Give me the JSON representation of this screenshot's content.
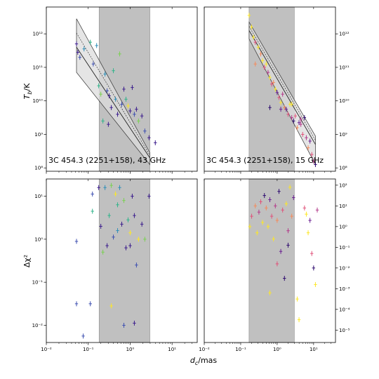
{
  "xlabel_main": "d",
  "xlabel_sub": "c",
  "xlabel_unit": "/mas",
  "ylabel_top_main": "T",
  "ylabel_top_sub": "b",
  "ylabel_top_unit": "/K",
  "ylabel_bottom": "Δχ²",
  "xticks": [
    {
      "label": "10⁻²",
      "value": -2
    },
    {
      "label": "10⁻¹",
      "value": -1
    },
    {
      "label": "10⁰",
      "value": 0
    },
    {
      "label": "10¹",
      "value": 1
    }
  ],
  "yticks_tb": [
    {
      "label": "10⁸",
      "value": 8
    },
    {
      "label": "10⁹",
      "value": 9
    },
    {
      "label": "10¹⁰",
      "value": 10
    },
    {
      "label": "10¹¹",
      "value": 11
    },
    {
      "label": "10¹²",
      "value": 12
    }
  ],
  "yticks_chi_left": [
    {
      "label": "10⁻²",
      "value": -2
    },
    {
      "label": "10⁻¹",
      "value": -1
    },
    {
      "label": "10⁰",
      "value": 0
    },
    {
      "label": "10¹",
      "value": 1
    }
  ],
  "yticks_chi_right": [
    {
      "label": "10⁻⁵",
      "value": -5
    },
    {
      "label": "10⁻⁴",
      "value": -4
    },
    {
      "label": "10⁻³",
      "value": -3
    },
    {
      "label": "10⁻²",
      "value": -2
    },
    {
      "label": "10⁻¹",
      "value": -1
    },
    {
      "label": "10⁰",
      "value": 0
    },
    {
      "label": "10¹",
      "value": 1
    },
    {
      "label": "10²",
      "value": 2
    }
  ],
  "colors": {
    "band": "#c0c0c0",
    "fit_band": "#dcdcdc",
    "uv": [
      "#3b1c8c",
      "#3d4fb0",
      "#2f8fb8",
      "#2fb48a",
      "#7ad151",
      "#fde725"
    ],
    "u": [
      "#2d0a6e",
      "#6a1f91",
      "#b33a8a",
      "#e0527a",
      "#f58a5b",
      "#fde725"
    ]
  },
  "chart_data": [
    {
      "type": "scatter",
      "panel": "top-left",
      "annotation": "3C 454.3 (2251+158), 43 GHz",
      "xscale": "log",
      "yscale": "log",
      "xlim_log10": [
        -2,
        1.6
      ],
      "ylim_log10": [
        7.9,
        12.8
      ],
      "shaded_x_log10": [
        -0.74,
        0.47
      ],
      "fit": {
        "x_log10": [
          -1.28,
          0.47
        ],
        "center_log10": [
          11.6,
          8.3
        ],
        "upper_log10": [
          12.45,
          8.45
        ],
        "lower_log10": [
          10.85,
          8.1
        ]
      },
      "points": [
        {
          "x": -1.28,
          "y": 11.7,
          "c": 0
        },
        {
          "x": -1.25,
          "y": 11.45,
          "c": 0
        },
        {
          "x": -1.2,
          "y": 11.3,
          "c": 1
        },
        {
          "x": -1.1,
          "y": 11.55,
          "c": 2
        },
        {
          "x": -0.95,
          "y": 11.75,
          "c": 3
        },
        {
          "x": -0.88,
          "y": 11.1,
          "c": 1
        },
        {
          "x": -0.8,
          "y": 11.65,
          "c": 2
        },
        {
          "x": -0.75,
          "y": 10.45,
          "c": 3
        },
        {
          "x": -0.7,
          "y": 10.2,
          "c": 4
        },
        {
          "x": -0.6,
          "y": 10.8,
          "c": 2
        },
        {
          "x": -0.55,
          "y": 10.3,
          "c": 1
        },
        {
          "x": -0.5,
          "y": 10.15,
          "c": 0
        },
        {
          "x": -0.45,
          "y": 9.8,
          "c": 0
        },
        {
          "x": -0.4,
          "y": 10.9,
          "c": 3
        },
        {
          "x": -0.35,
          "y": 10.05,
          "c": 2
        },
        {
          "x": -0.3,
          "y": 9.6,
          "c": 0
        },
        {
          "x": -0.25,
          "y": 11.4,
          "c": 4
        },
        {
          "x": -0.2,
          "y": 9.9,
          "c": 1
        },
        {
          "x": -0.15,
          "y": 10.35,
          "c": 0
        },
        {
          "x": -0.1,
          "y": 10.05,
          "c": 3
        },
        {
          "x": -0.05,
          "y": 9.85,
          "c": 5
        },
        {
          "x": 0.0,
          "y": 9.7,
          "c": 0
        },
        {
          "x": 0.05,
          "y": 10.4,
          "c": 0
        },
        {
          "x": 0.1,
          "y": 9.6,
          "c": 1
        },
        {
          "x": 0.15,
          "y": 9.75,
          "c": 0
        },
        {
          "x": 0.2,
          "y": 9.4,
          "c": 4
        },
        {
          "x": 0.28,
          "y": 9.55,
          "c": 0
        },
        {
          "x": 0.35,
          "y": 9.1,
          "c": 1
        },
        {
          "x": 0.45,
          "y": 8.9,
          "c": 0
        },
        {
          "x": 0.6,
          "y": 8.75,
          "c": 0
        },
        {
          "x": -0.65,
          "y": 9.4,
          "c": 3
        },
        {
          "x": -0.52,
          "y": 9.3,
          "c": 0
        }
      ]
    },
    {
      "type": "scatter",
      "panel": "top-right",
      "annotation": "3C 454.3 (2251+158), 15 GHz",
      "xscale": "log",
      "yscale": "log",
      "xlim_log10": [
        -2,
        1.6
      ],
      "ylim_log10": [
        7.9,
        12.8
      ],
      "shaded_x_log10": [
        -0.77,
        0.47
      ],
      "fit": {
        "x_log10": [
          -0.77,
          1.05
        ],
        "center_log10": [
          12.1,
          8.7
        ],
        "upper_log10": [
          12.35,
          8.95
        ],
        "lower_log10": [
          11.85,
          8.1
        ]
      },
      "points": [
        {
          "x": -0.77,
          "y": 12.55,
          "c": 5
        },
        {
          "x": -0.7,
          "y": 12.2,
          "c": 5
        },
        {
          "x": -0.65,
          "y": 11.9,
          "c": 5
        },
        {
          "x": -0.6,
          "y": 11.75,
          "c": 3
        },
        {
          "x": -0.52,
          "y": 11.6,
          "c": 5
        },
        {
          "x": -0.45,
          "y": 11.4,
          "c": 4
        },
        {
          "x": -0.4,
          "y": 11.2,
          "c": 5
        },
        {
          "x": -0.35,
          "y": 11.0,
          "c": 3
        },
        {
          "x": -0.3,
          "y": 11.1,
          "c": 5
        },
        {
          "x": -0.25,
          "y": 10.85,
          "c": 2
        },
        {
          "x": -0.2,
          "y": 10.7,
          "c": 5
        },
        {
          "x": -0.15,
          "y": 10.5,
          "c": 3
        },
        {
          "x": -0.1,
          "y": 10.55,
          "c": 4
        },
        {
          "x": -0.05,
          "y": 10.35,
          "c": 5
        },
        {
          "x": 0.0,
          "y": 10.25,
          "c": 1
        },
        {
          "x": 0.05,
          "y": 10.1,
          "c": 3
        },
        {
          "x": 0.1,
          "y": 9.95,
          "c": 5
        },
        {
          "x": 0.15,
          "y": 10.2,
          "c": 2
        },
        {
          "x": 0.2,
          "y": 9.8,
          "c": 4
        },
        {
          "x": 0.25,
          "y": 9.75,
          "c": 1
        },
        {
          "x": 0.3,
          "y": 9.6,
          "c": 3
        },
        {
          "x": 0.35,
          "y": 9.9,
          "c": 5
        },
        {
          "x": 0.4,
          "y": 9.5,
          "c": 2
        },
        {
          "x": 0.45,
          "y": 9.4,
          "c": 0
        },
        {
          "x": 0.5,
          "y": 9.55,
          "c": 3
        },
        {
          "x": 0.55,
          "y": 9.2,
          "c": 4
        },
        {
          "x": 0.6,
          "y": 9.35,
          "c": 1
        },
        {
          "x": 0.65,
          "y": 9.3,
          "c": 2
        },
        {
          "x": 0.7,
          "y": 9.0,
          "c": 3
        },
        {
          "x": 0.75,
          "y": 9.5,
          "c": 0
        },
        {
          "x": 0.8,
          "y": 8.9,
          "c": 2
        },
        {
          "x": 0.85,
          "y": 8.6,
          "c": 4
        },
        {
          "x": 0.9,
          "y": 8.8,
          "c": 1
        },
        {
          "x": 0.95,
          "y": 8.4,
          "c": 3
        },
        {
          "x": 1.0,
          "y": 8.2,
          "c": 2
        },
        {
          "x": 1.05,
          "y": 8.1,
          "c": 0
        },
        {
          "x": -0.2,
          "y": 9.8,
          "c": 0
        },
        {
          "x": 0.1,
          "y": 9.75,
          "c": 1
        },
        {
          "x": 0.4,
          "y": 9.9,
          "c": 5
        },
        {
          "x": 0.65,
          "y": 9.45,
          "c": 2
        },
        {
          "x": -0.6,
          "y": 11.1,
          "c": 4
        }
      ]
    },
    {
      "type": "scatter",
      "panel": "bottom-left",
      "xscale": "log",
      "yscale": "log",
      "xlim_log10": [
        -2,
        1.6
      ],
      "ylim_log10": [
        -2.4,
        1.4
      ],
      "shaded_x_log10": [
        -0.74,
        0.47
      ],
      "points": [
        {
          "x": -1.28,
          "y": -0.05,
          "c": 1
        },
        {
          "x": -1.28,
          "y": -1.5,
          "c": 1
        },
        {
          "x": -1.12,
          "y": -2.25,
          "c": 1
        },
        {
          "x": -0.95,
          "y": -1.5,
          "c": 1
        },
        {
          "x": -0.9,
          "y": 1.05,
          "c": 1
        },
        {
          "x": -0.9,
          "y": 0.65,
          "c": 3
        },
        {
          "x": -0.75,
          "y": 1.2,
          "c": 0
        },
        {
          "x": -0.7,
          "y": 0.3,
          "c": 0
        },
        {
          "x": -0.65,
          "y": -0.3,
          "c": 4
        },
        {
          "x": -0.6,
          "y": 1.2,
          "c": 2
        },
        {
          "x": -0.55,
          "y": -0.15,
          "c": 0
        },
        {
          "x": -0.5,
          "y": 0.55,
          "c": 3
        },
        {
          "x": -0.45,
          "y": 1.25,
          "c": 4
        },
        {
          "x": -0.4,
          "y": 0.05,
          "c": 1
        },
        {
          "x": -0.35,
          "y": 1.05,
          "c": 5
        },
        {
          "x": -0.3,
          "y": 0.8,
          "c": 3
        },
        {
          "x": -0.25,
          "y": 1.2,
          "c": 2
        },
        {
          "x": -0.2,
          "y": 0.35,
          "c": 0
        },
        {
          "x": -0.15,
          "y": 0.9,
          "c": 4
        },
        {
          "x": -0.1,
          "y": -0.2,
          "c": 0
        },
        {
          "x": -0.05,
          "y": 0.45,
          "c": 3
        },
        {
          "x": 0.0,
          "y": 0.15,
          "c": 5
        },
        {
          "x": 0.05,
          "y": 1.0,
          "c": 0
        },
        {
          "x": 0.1,
          "y": 0.55,
          "c": 0
        },
        {
          "x": 0.15,
          "y": -0.6,
          "c": 1
        },
        {
          "x": 0.2,
          "y": 0.0,
          "c": 5
        },
        {
          "x": 0.28,
          "y": 0.35,
          "c": 0
        },
        {
          "x": 0.35,
          "y": 0.0,
          "c": 4
        },
        {
          "x": 0.45,
          "y": 1.0,
          "c": 0
        },
        {
          "x": -0.15,
          "y": -2.0,
          "c": 1
        },
        {
          "x": 0.1,
          "y": -1.95,
          "c": 0
        },
        {
          "x": -0.45,
          "y": -1.55,
          "c": 5
        },
        {
          "x": -0.3,
          "y": 0.2,
          "c": 2
        },
        {
          "x": 0.0,
          "y": -0.15,
          "c": 0
        }
      ]
    },
    {
      "type": "scatter",
      "panel": "bottom-right",
      "xscale": "log",
      "yscale": "log",
      "xlim_log10": [
        -2,
        1.6
      ],
      "ylim_log10": [
        -5.6,
        2.3
      ],
      "shaded_x_log10": [
        -0.77,
        0.47
      ],
      "points": [
        {
          "x": -0.75,
          "y": 0.0,
          "c": 5
        },
        {
          "x": -0.7,
          "y": 0.5,
          "c": 3
        },
        {
          "x": -0.6,
          "y": 1.0,
          "c": 4
        },
        {
          "x": -0.55,
          "y": -0.3,
          "c": 5
        },
        {
          "x": -0.5,
          "y": 0.7,
          "c": 2
        },
        {
          "x": -0.45,
          "y": 1.2,
          "c": 3
        },
        {
          "x": -0.4,
          "y": 0.2,
          "c": 5
        },
        {
          "x": -0.35,
          "y": 1.5,
          "c": 0
        },
        {
          "x": -0.3,
          "y": 0.9,
          "c": 4
        },
        {
          "x": -0.25,
          "y": 0.0,
          "c": 5
        },
        {
          "x": -0.2,
          "y": 1.3,
          "c": 1
        },
        {
          "x": -0.15,
          "y": 0.5,
          "c": 3
        },
        {
          "x": -0.1,
          "y": -0.6,
          "c": 5
        },
        {
          "x": -0.05,
          "y": 1.0,
          "c": 2
        },
        {
          "x": 0.0,
          "y": 0.3,
          "c": 4
        },
        {
          "x": 0.05,
          "y": 1.7,
          "c": 0
        },
        {
          "x": 0.1,
          "y": -1.2,
          "c": 1
        },
        {
          "x": 0.15,
          "y": 0.8,
          "c": 3
        },
        {
          "x": 0.2,
          "y": -2.5,
          "c": 0
        },
        {
          "x": 0.25,
          "y": 1.1,
          "c": 5
        },
        {
          "x": 0.3,
          "y": -0.2,
          "c": 2
        },
        {
          "x": 0.35,
          "y": 1.9,
          "c": 5
        },
        {
          "x": 0.4,
          "y": 0.5,
          "c": 4
        },
        {
          "x": 0.45,
          "y": 1.4,
          "c": 1
        },
        {
          "x": 0.55,
          "y": -3.5,
          "c": 5
        },
        {
          "x": 0.6,
          "y": -4.5,
          "c": 5
        },
        {
          "x": 0.75,
          "y": 0.9,
          "c": 3
        },
        {
          "x": 0.8,
          "y": 0.6,
          "c": 5
        },
        {
          "x": 0.85,
          "y": -0.3,
          "c": 5
        },
        {
          "x": 0.9,
          "y": 0.3,
          "c": 1
        },
        {
          "x": 0.95,
          "y": -1.3,
          "c": 3
        },
        {
          "x": 1.0,
          "y": -2.0,
          "c": 0
        },
        {
          "x": 1.05,
          "y": -2.8,
          "c": 5
        },
        {
          "x": 1.1,
          "y": 0.8,
          "c": 2
        },
        {
          "x": -0.2,
          "y": -3.2,
          "c": 5
        },
        {
          "x": 0.0,
          "y": -1.8,
          "c": 3
        },
        {
          "x": 0.3,
          "y": -0.9,
          "c": 0
        }
      ]
    }
  ]
}
